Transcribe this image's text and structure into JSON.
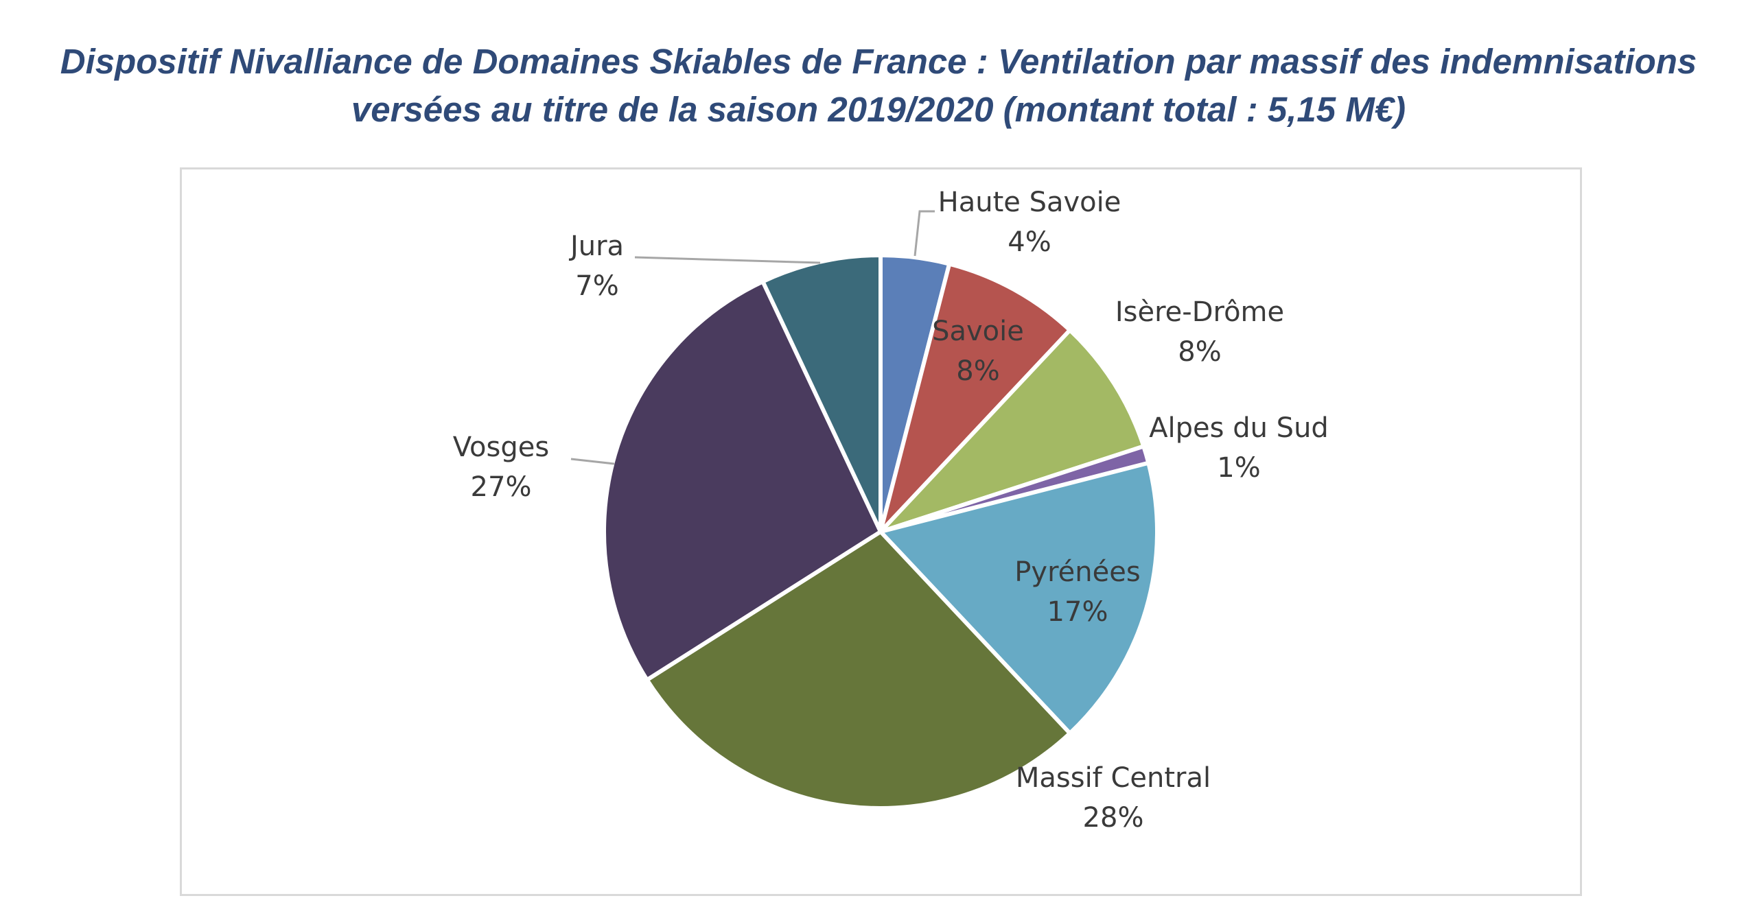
{
  "title_lines": [
    "Dispositif Nivalliance de Domaines Skiables de France : Ventilation par massif des indemnisations",
    "versées au titre de la saison 2019/2020 (montant total : 5,15 M€)"
  ],
  "chart_data": {
    "type": "pie",
    "title": "Dispositif Nivalliance de Domaines Skiables de France : Ventilation par massif des indemnisations versées au titre de la saison 2019/2020 (montant total : 5,15 M€)",
    "start": "12 o'clock, clockwise",
    "slices": [
      {
        "label": "Haute Savoie",
        "value": 4,
        "value_label": "4%",
        "color": "#5b7fb8"
      },
      {
        "label": "Savoie",
        "value": 8,
        "value_label": "8%",
        "color": "#b5544f"
      },
      {
        "label": "Isère-Drôme",
        "value": 8,
        "value_label": "8%",
        "color": "#a3b964"
      },
      {
        "label": "Alpes du Sud",
        "value": 1,
        "value_label": "1%",
        "color": "#7e64a6"
      },
      {
        "label": "Pyrénées",
        "value": 17,
        "value_label": "17%",
        "color": "#67aac5"
      },
      {
        "label": "Massif Central",
        "value": 28,
        "value_label": "28%",
        "color": "#66763a"
      },
      {
        "label": "Vosges",
        "value": 27,
        "value_label": "27%",
        "color": "#4a3b5e"
      },
      {
        "label": "Jura",
        "value": 7,
        "value_label": "7%",
        "color": "#3b6a7a"
      }
    ]
  }
}
